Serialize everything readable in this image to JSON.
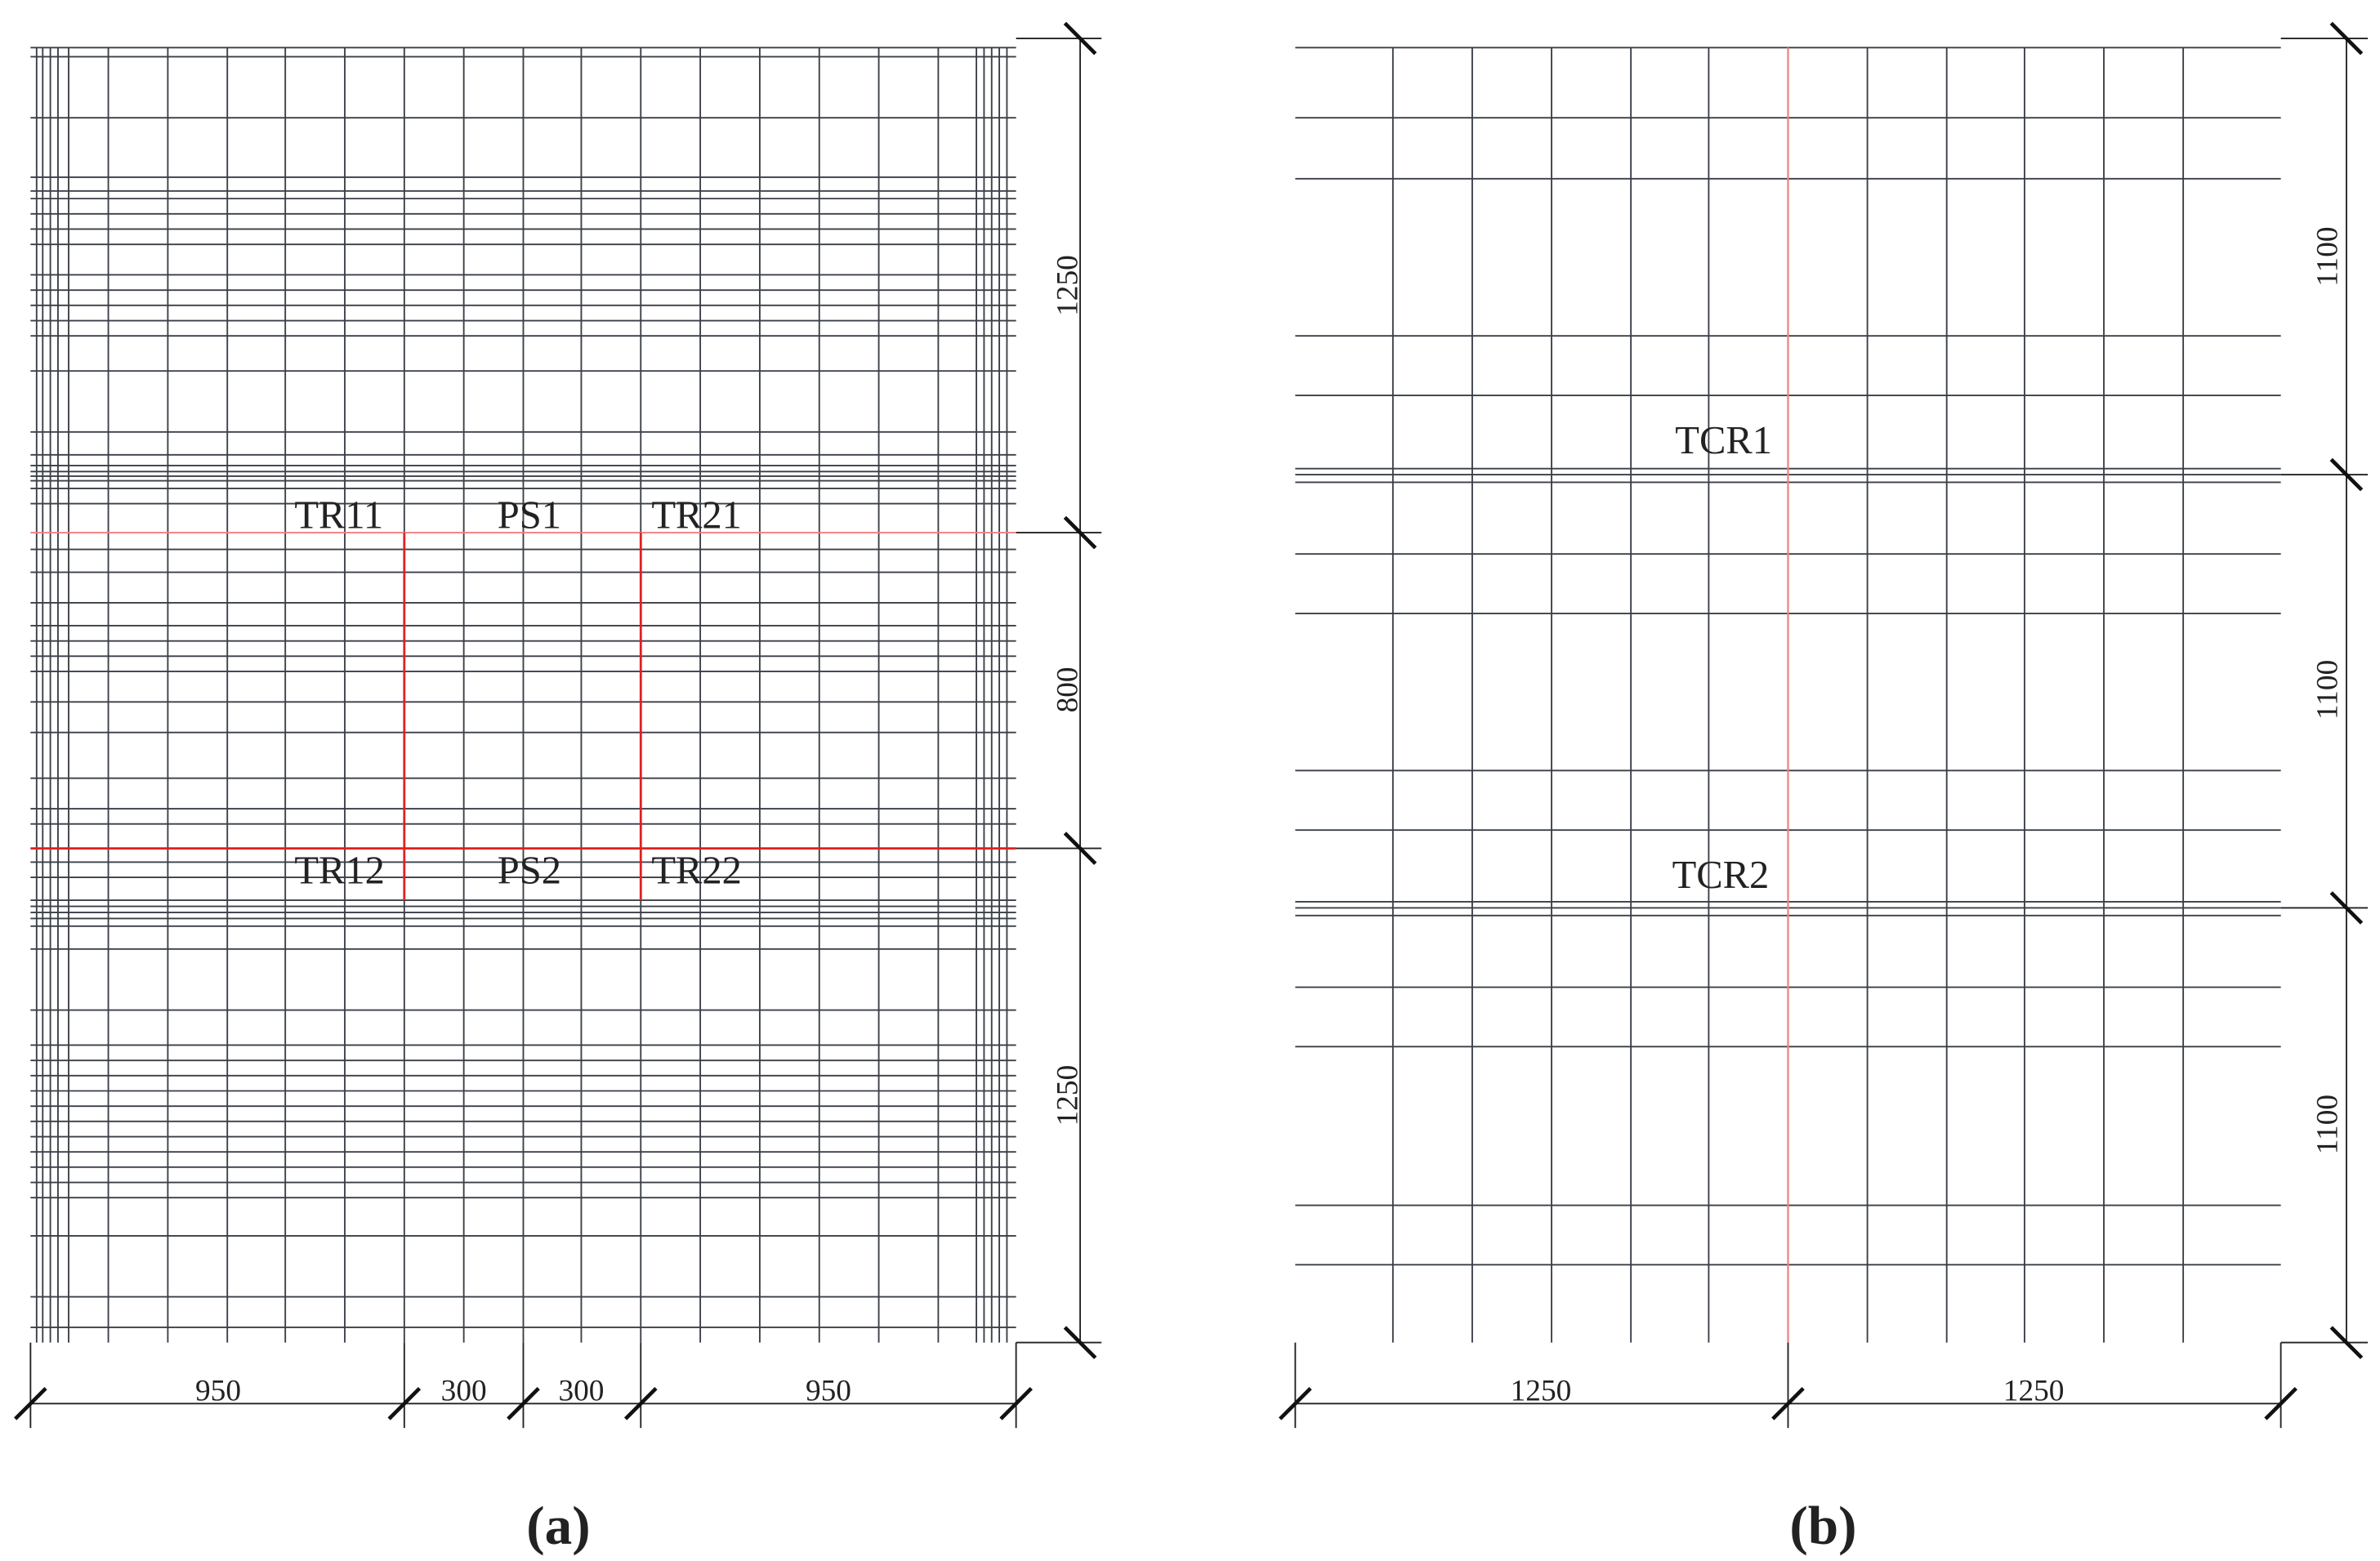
{
  "panels": [
    {
      "label": "(a)",
      "sensors": [
        "TR11",
        "PS1",
        "TR21",
        "TR12",
        "PS2",
        "TR22"
      ],
      "dimensions": {
        "vertical": [
          1250,
          800,
          1250
        ],
        "horizontal": [
          950,
          300,
          300,
          950
        ]
      }
    },
    {
      "label": "(b)",
      "sensors": [
        "TCR1",
        "TCR2"
      ],
      "dimensions": {
        "vertical": [
          1100,
          1100,
          1100
        ],
        "horizontal": [
          1250,
          1250
        ]
      }
    }
  ]
}
